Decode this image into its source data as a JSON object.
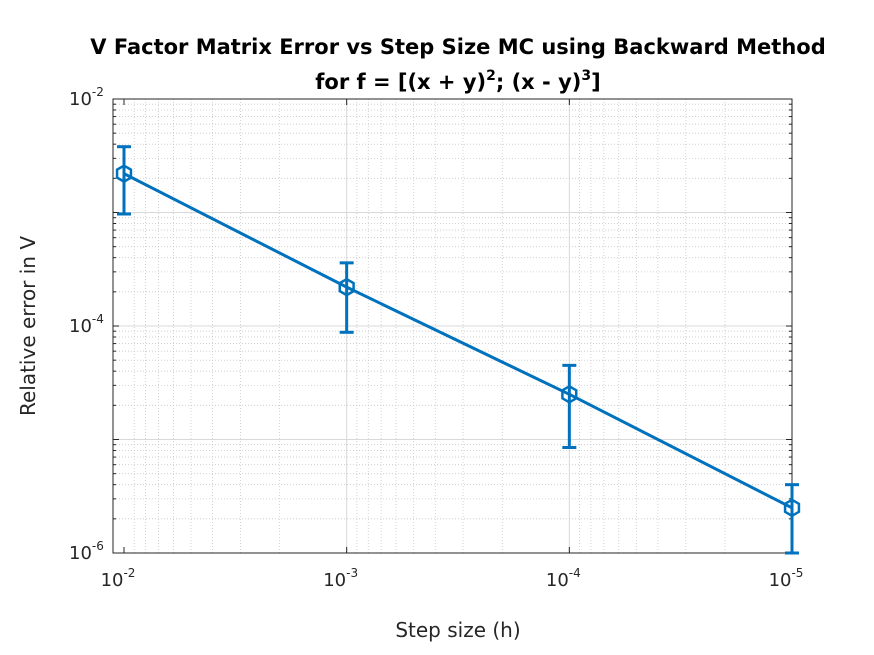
{
  "chart_data": {
    "type": "line",
    "title_line1": "V Factor Matrix Error vs Step Size MC using Backward Method",
    "title_line2": {
      "prefix": "for f = [(x + y)",
      "exp1": "2",
      "middle": "; (x - y)",
      "exp2": "3",
      "suffix": "]"
    },
    "xlabel": "Step size (h)",
    "ylabel": "Relative error in V",
    "x_scale": "log",
    "y_scale": "log",
    "x_reversed": true,
    "xlim": [
      0.01,
      1e-05
    ],
    "ylim": [
      1e-06,
      0.01
    ],
    "grid": true,
    "minor_grid": true,
    "x_ticks": [
      {
        "value": 0.01,
        "base": "10",
        "exp": "-2"
      },
      {
        "value": 0.001,
        "base": "10",
        "exp": "-3"
      },
      {
        "value": 0.0001,
        "base": "10",
        "exp": "-4"
      },
      {
        "value": 1e-05,
        "base": "10",
        "exp": "-5"
      }
    ],
    "y_ticks": [
      {
        "value": 0.01,
        "base": "10",
        "exp": "-2"
      },
      {
        "value": 0.0001,
        "base": "10",
        "exp": "-4"
      },
      {
        "value": 1e-06,
        "base": "10",
        "exp": "-6"
      }
    ],
    "series": [
      {
        "color": "#0072BD",
        "marker": "hexagon",
        "x": [
          0.01,
          0.001,
          0.0001,
          1e-05
        ],
        "y": [
          0.0022,
          0.00022,
          2.5e-05,
          2.5e-06
        ],
        "err_low": [
          0.00097,
          8.8e-05,
          8.5e-06,
          1e-06
        ],
        "err_high": [
          0.0038,
          0.00036,
          4.5e-05,
          4e-06
        ]
      }
    ]
  }
}
